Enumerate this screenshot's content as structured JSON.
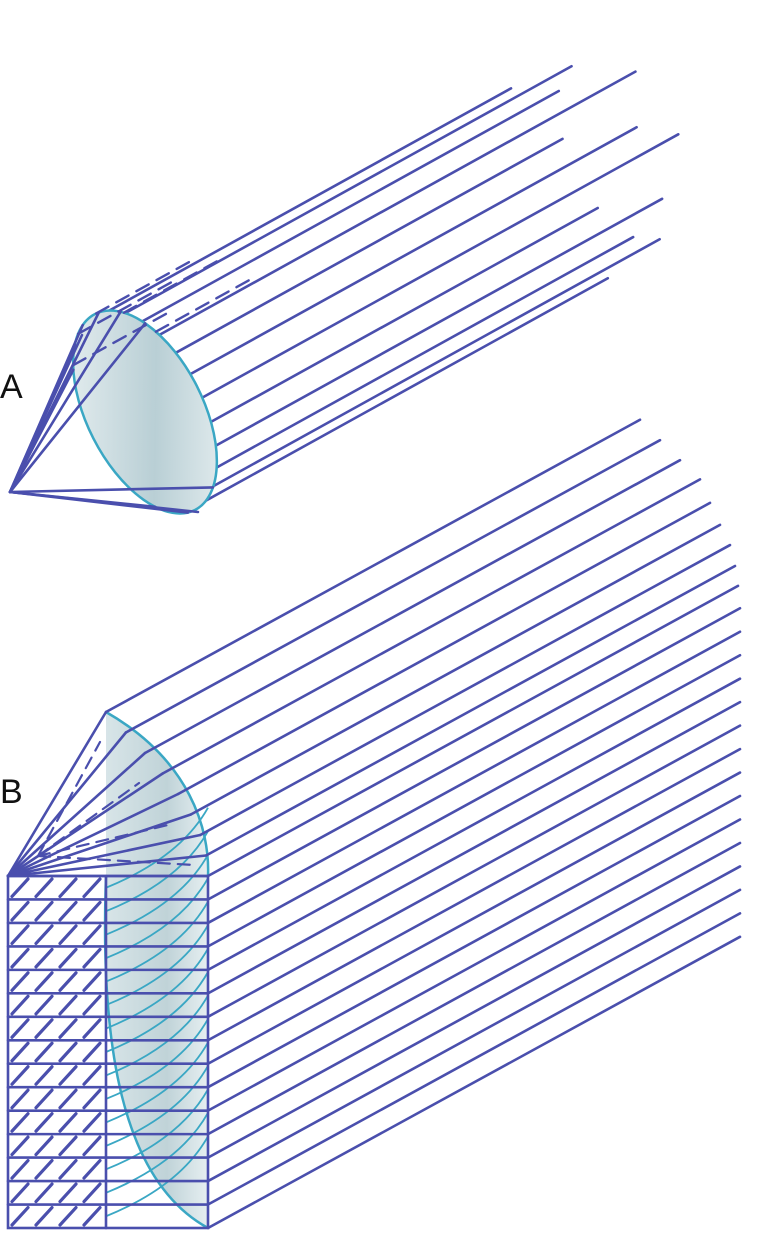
{
  "figure": {
    "panels": [
      {
        "id": "A",
        "label": "A",
        "kind": "point-source-cone"
      },
      {
        "id": "B",
        "label": "B",
        "kind": "line-source-array"
      }
    ]
  },
  "colors": {
    "ray": "#4a4fad",
    "lens_edge": "#3aa7c4",
    "lens_fill": "#c5d7dc",
    "lens_shade": "#eef4f5",
    "label": "#111111",
    "background": "#ffffff"
  }
}
